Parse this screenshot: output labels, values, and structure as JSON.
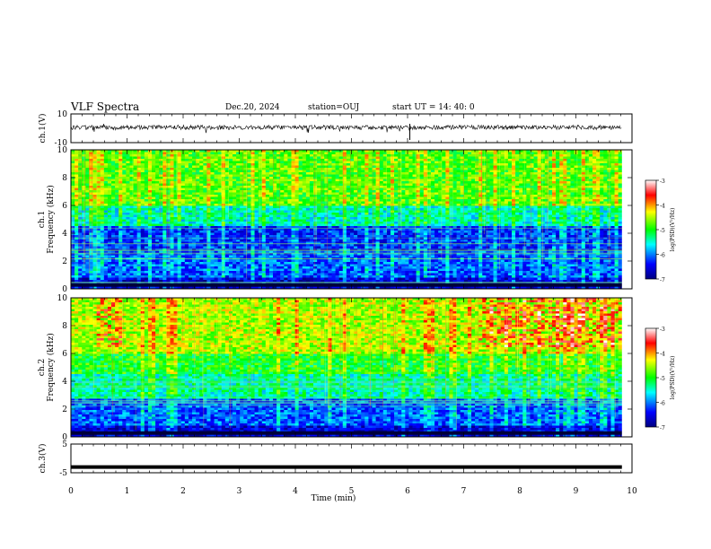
{
  "header": {
    "title": "VLF Spectra",
    "date": "Dec.20, 2024",
    "station": "station=OUJ",
    "start_time": "start UT =   14: 40: 0"
  },
  "chart_data": [
    {
      "type": "line",
      "panel": "ch1-waveform",
      "ylabel": "ch.1(V)",
      "ylim": [
        -10,
        10
      ],
      "ytick_labels": [
        "10",
        "-10"
      ],
      "xlim": [
        0,
        10
      ],
      "series": [
        {
          "values_note_level": 0.6,
          "x_end": 9.82
        }
      ]
    },
    {
      "type": "heatmap",
      "panel": "ch1-spectrogram",
      "ylabel_top": "ch.1",
      "ylabel": "Frequency (kHz)",
      "ylim": [
        0,
        10
      ],
      "ytick_labels": [
        "0",
        "2",
        "4",
        "6",
        "8",
        "10"
      ],
      "xlim": [
        0,
        10
      ],
      "x_end": 9.82,
      "colorbar": {
        "label": "log(PSD)(V²/Hz)",
        "range": [
          -7,
          -3
        ],
        "tick_labels": [
          "-3",
          "-4",
          "-5",
          "-6",
          "-7"
        ],
        "colors": [
          "#00007f",
          "#0000ff",
          "#00ffff",
          "#00ff00",
          "#ffff00",
          "#ff0000",
          "#ffffff"
        ]
      }
    },
    {
      "type": "heatmap",
      "panel": "ch2-spectrogram",
      "ylabel_top": "ch.2",
      "ylabel": "Frequency (kHz)",
      "ylim": [
        0,
        10
      ],
      "ytick_labels": [
        "0",
        "2",
        "4",
        "6",
        "8",
        "10"
      ],
      "xlim": [
        0,
        10
      ],
      "x_end": 9.82,
      "colorbar": {
        "label": "log(PSD)(V²/Hz)",
        "range": [
          -7,
          -3
        ],
        "tick_labels": [
          "-3",
          "-4",
          "-5",
          "-6",
          "-7"
        ],
        "colors": [
          "#00007f",
          "#0000ff",
          "#00ffff",
          "#00ff00",
          "#ffff00",
          "#ff0000",
          "#ffffff"
        ]
      }
    },
    {
      "type": "line",
      "panel": "ch3-waveform",
      "ylabel": "ch.3(V)",
      "ylim": [
        -5,
        5
      ],
      "ytick_labels": [
        "5",
        "-5"
      ],
      "xlim": [
        0,
        10
      ],
      "series": [
        {
          "constant_value": -3,
          "x_end": 9.82
        }
      ]
    }
  ],
  "xaxis": {
    "label": "Time (min)",
    "tick_labels": [
      "0",
      "1",
      "2",
      "3",
      "4",
      "5",
      "6",
      "7",
      "8",
      "9",
      "10"
    ]
  }
}
